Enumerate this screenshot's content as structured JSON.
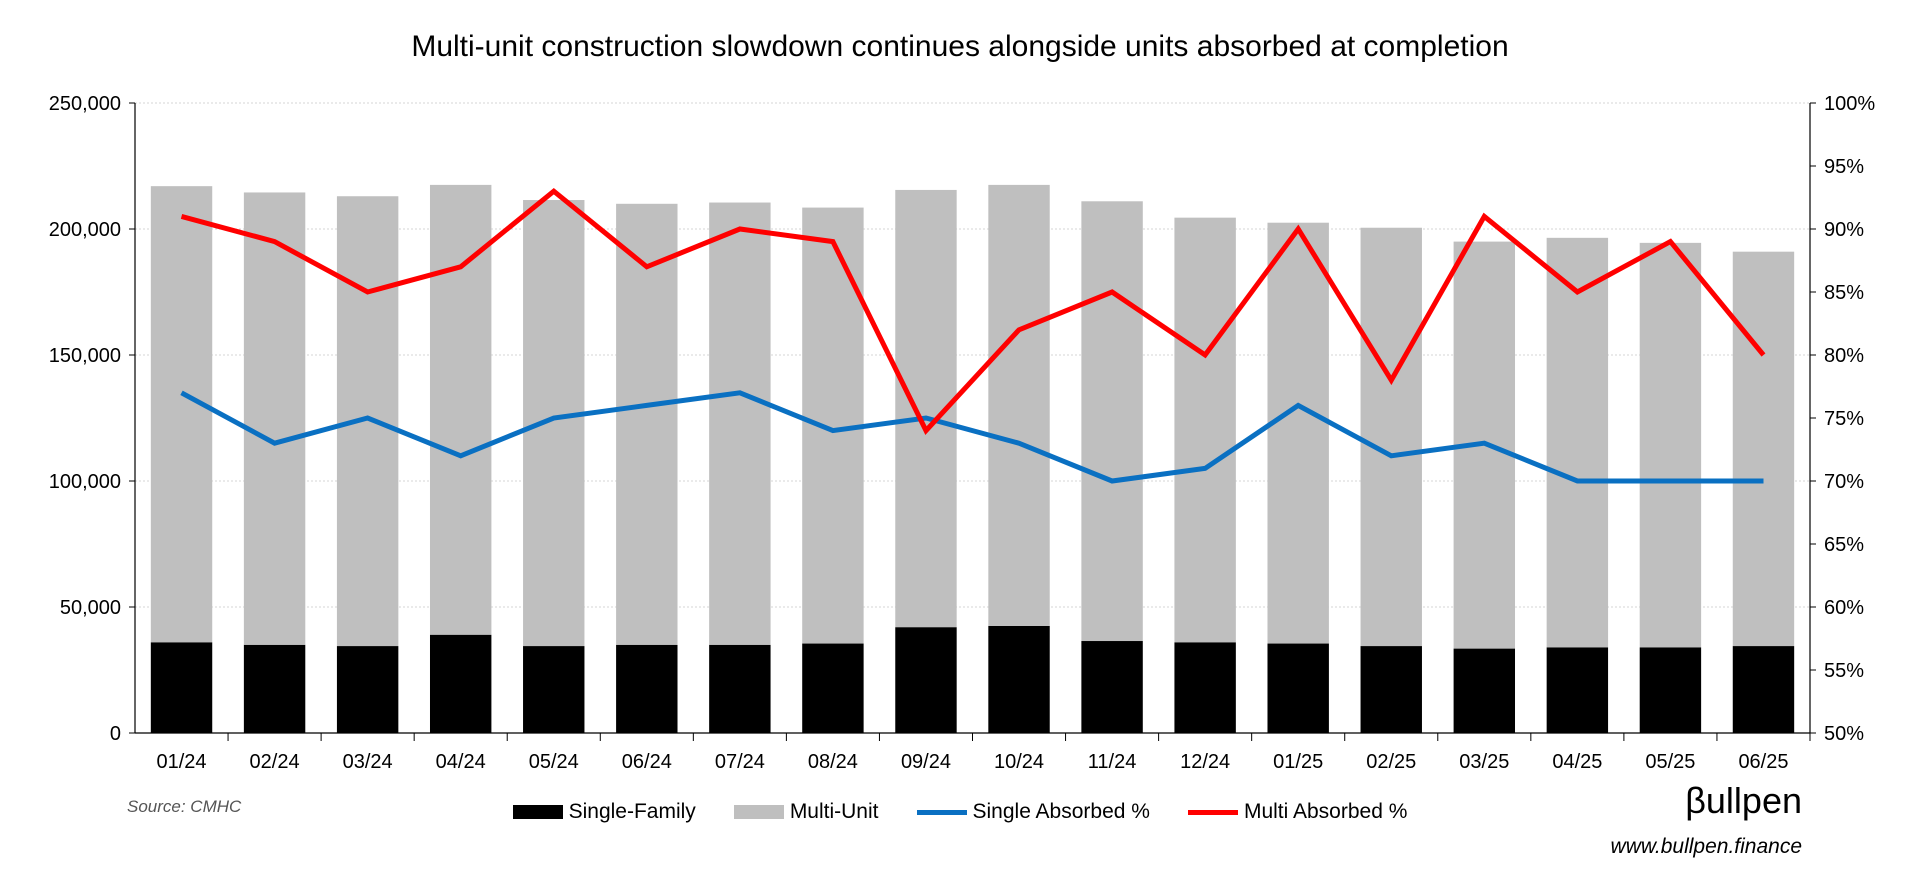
{
  "chart_data": {
    "type": "bar",
    "title": "Multi-unit construction slowdown continues alongside units absorbed at completion",
    "categories": [
      "01/24",
      "02/24",
      "03/24",
      "04/24",
      "05/24",
      "06/24",
      "07/24",
      "08/24",
      "09/24",
      "10/24",
      "11/24",
      "12/24",
      "01/25",
      "02/25",
      "03/25",
      "04/25",
      "05/25",
      "06/25"
    ],
    "left_axis": {
      "ylim": [
        0,
        250000
      ],
      "ticks": [
        "0",
        "50,000",
        "100,000",
        "150,000",
        "200,000",
        "250,000"
      ]
    },
    "right_axis": {
      "ylim": [
        50,
        100
      ],
      "ticks": [
        "50%",
        "55%",
        "60%",
        "65%",
        "70%",
        "75%",
        "80%",
        "85%",
        "90%",
        "95%",
        "100%"
      ]
    },
    "grid": true,
    "stacked": true,
    "series": [
      {
        "name": "Single-Family",
        "kind": "bar",
        "axis": "left",
        "color": "#000000",
        "values": [
          36000,
          35000,
          34500,
          39000,
          34500,
          35000,
          35000,
          35500,
          42000,
          42500,
          36500,
          36000,
          35500,
          34500,
          33500,
          34000,
          34000,
          34500
        ]
      },
      {
        "name": "Multi-Unit",
        "kind": "bar",
        "axis": "left",
        "color": "#bfbfbf",
        "values": [
          181000,
          179500,
          178500,
          178500,
          177000,
          175000,
          175500,
          173000,
          173500,
          175000,
          174500,
          168500,
          167000,
          166000,
          161500,
          162500,
          160500,
          156500
        ]
      },
      {
        "name": "Single Absorbed %",
        "kind": "line",
        "axis": "right",
        "color": "#0a70c2",
        "values": [
          77,
          73,
          75,
          72,
          75,
          76,
          77,
          74,
          75,
          73,
          70,
          71,
          76,
          72,
          73,
          70,
          70,
          70
        ]
      },
      {
        "name": "Multi Absorbed %",
        "kind": "line",
        "axis": "right",
        "color": "#ff0000",
        "values": [
          91,
          89,
          85,
          87,
          93,
          87,
          90,
          89,
          74,
          82,
          85,
          80,
          90,
          78,
          91,
          85,
          89,
          80
        ]
      }
    ],
    "legend_position": "bottom",
    "source": "Source: CMHC"
  },
  "brand": {
    "logo": "βullpen",
    "website": "www.bullpen.finance"
  }
}
